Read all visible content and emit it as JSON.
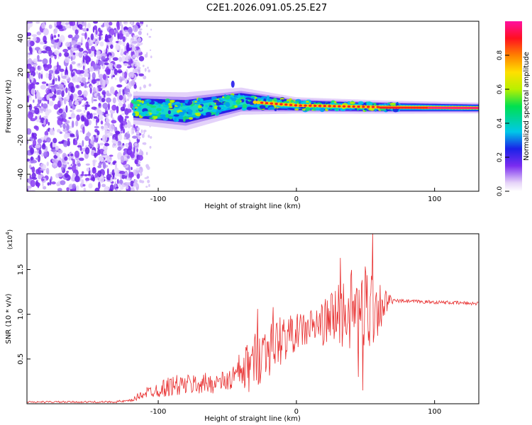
{
  "title": "C2E1.2026.091.05.25.E27",
  "chart_data": [
    {
      "type": "heatmap",
      "xlabel": "Height of straight line (km)",
      "ylabel": "Frequency (Hz)",
      "xlim": [
        -195,
        132
      ],
      "ylim": [
        -50,
        50
      ],
      "xticks": [
        -100,
        0,
        100
      ],
      "xtick_labels": [
        "-100",
        "0",
        "100"
      ],
      "yticks": [
        -40,
        -20,
        0,
        20,
        40
      ],
      "ytick_labels": [
        "-40",
        "-20",
        "0",
        "20",
        "40"
      ],
      "noise_region": [
        -195,
        -118
      ],
      "signal_region": [
        -118,
        132
      ],
      "signal_band_halfwidth": {
        "x": [
          -118,
          -80,
          -40,
          0,
          60,
          132
        ],
        "hz": [
          6,
          7,
          5,
          3,
          2.5,
          2
        ]
      },
      "ridge_center": {
        "x": [
          -118,
          -80,
          -40,
          0,
          60,
          132
        ],
        "hz": [
          -1,
          -3,
          3,
          0.5,
          -0.5,
          -1
        ]
      },
      "colorbar": {
        "label": "Normalized spectral amplitude",
        "range": [
          0,
          1
        ],
        "ticks": [
          0.0,
          0.2,
          0.4,
          0.6,
          0.8
        ],
        "tick_labels": [
          "0.0",
          "0.2",
          "0.4",
          "0.6",
          "0.8"
        ]
      }
    },
    {
      "type": "line",
      "xlabel": "Height of straight line (km)",
      "ylabel": "SNR (10 * v/v)",
      "multiplier_label": "(x10",
      "multiplier_exp": "4",
      "multiplier_close": ")",
      "xlim": [
        -195,
        132
      ],
      "ylim": [
        0,
        1.9
      ],
      "xticks": [
        -100,
        0,
        100
      ],
      "xtick_labels": [
        "-100",
        "0",
        "100"
      ],
      "yticks": [
        0.5,
        1.0,
        1.5
      ],
      "ytick_labels": [
        "0.5",
        "1.0",
        "1.5"
      ],
      "series": [
        {
          "name": "SNR",
          "color": "#e83030",
          "envelope_x": [
            -195,
            -135,
            -120,
            -110,
            -90,
            -70,
            -50,
            -35,
            -20,
            0,
            20,
            30,
            40,
            50,
            55,
            60,
            70,
            132
          ],
          "envelope_mid": [
            0.02,
            0.02,
            0.03,
            0.12,
            0.2,
            0.22,
            0.25,
            0.4,
            0.65,
            0.8,
            0.9,
            1.0,
            1.05,
            1.1,
            1.1,
            1.1,
            1.15,
            1.12
          ],
          "envelope_amp": [
            0.01,
            0.01,
            0.02,
            0.06,
            0.12,
            0.12,
            0.12,
            0.3,
            0.35,
            0.2,
            0.25,
            0.4,
            0.45,
            0.55,
            0.5,
            0.3,
            0.02,
            0.02
          ],
          "peaks": [
            {
              "x": 55,
              "y": 1.92
            },
            {
              "x": 48,
              "y": 1.7
            },
            {
              "x": 32,
              "y": 1.63
            },
            {
              "x": -17,
              "y": 1.08
            },
            {
              "x": -28,
              "y": 1.06
            },
            {
              "x": 48,
              "y": 0.15
            },
            {
              "x": 45,
              "y": 0.3
            }
          ]
        }
      ]
    }
  ]
}
